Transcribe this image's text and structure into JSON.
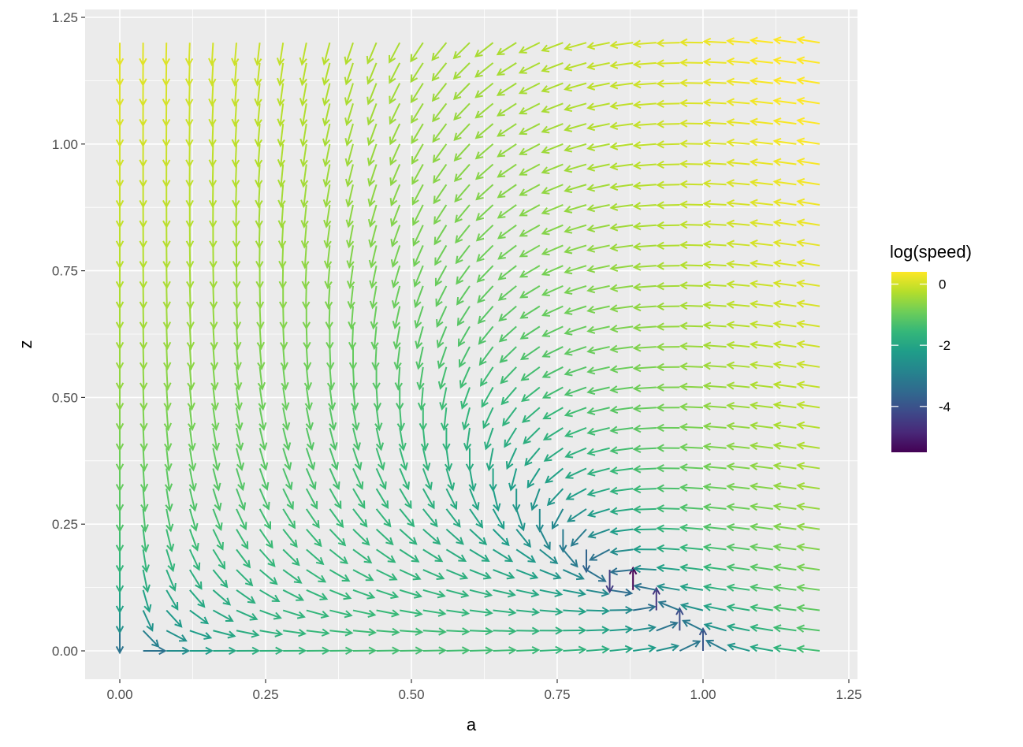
{
  "chart_data": {
    "type": "vector_field",
    "xlabel": "a",
    "ylabel": "z",
    "xlim": [
      -0.06,
      1.26
    ],
    "ylim": [
      -0.06,
      1.26
    ],
    "x_ticks": [
      {
        "value": 0,
        "label": "0.00"
      },
      {
        "value": 0.25,
        "label": "0.25"
      },
      {
        "value": 0.5,
        "label": "0.50"
      },
      {
        "value": 0.75,
        "label": "0.75"
      },
      {
        "value": 1.0,
        "label": "1.00"
      },
      {
        "value": 1.25,
        "label": "1.25"
      }
    ],
    "y_ticks": [
      {
        "value": 0,
        "label": "0.00"
      },
      {
        "value": 0.25,
        "label": "0.25"
      },
      {
        "value": 0.5,
        "label": "0.50"
      },
      {
        "value": 0.75,
        "label": "0.75"
      },
      {
        "value": 1.0,
        "label": "1.00"
      },
      {
        "value": 1.25,
        "label": "1.25"
      }
    ],
    "grid": {
      "x_start": 0,
      "x_end": 1.2,
      "x_step": 0.04,
      "y_start": 0,
      "y_end": 1.2,
      "y_step": 0.04
    },
    "field": {
      "u": "a*(1 - a - z)",
      "v": "z*(a - 1) + 0.02*a*a"
    },
    "legend": {
      "title": "log(speed)",
      "placement": "right",
      "range": [
        -5.5,
        0.4
      ],
      "ticks": [
        {
          "value": 0,
          "label": "0"
        },
        {
          "value": -2,
          "label": "-2"
        },
        {
          "value": -4,
          "label": "-4"
        }
      ],
      "colormap": "viridis"
    },
    "colors": {
      "panel_background": "#ebebeb",
      "gridline": "#ffffff",
      "viridis": [
        "#440154",
        "#482878",
        "#3e4989",
        "#31688e",
        "#26828e",
        "#1f9e89",
        "#35b779",
        "#6ece58",
        "#b5de2b",
        "#fde725"
      ]
    }
  }
}
